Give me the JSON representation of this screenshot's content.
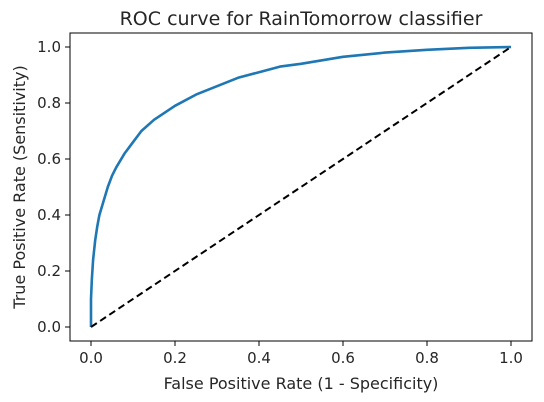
{
  "chart_data": {
    "type": "line",
    "title": "ROC curve for RainTomorrow classifier",
    "xlabel": "False Positive Rate (1 - Specificity)",
    "ylabel": "True Positive Rate (Sensitivity)",
    "xlim": [
      -0.05,
      1.05
    ],
    "ylim": [
      -0.05,
      1.05
    ],
    "xticks": [
      0.0,
      0.2,
      0.4,
      0.6,
      0.8,
      1.0
    ],
    "yticks": [
      0.0,
      0.2,
      0.4,
      0.6,
      0.8,
      1.0
    ],
    "xtick_labels": [
      "0.0",
      "0.2",
      "0.4",
      "0.6",
      "0.8",
      "1.0"
    ],
    "ytick_labels": [
      "0.0",
      "0.2",
      "0.4",
      "0.6",
      "0.8",
      "1.0"
    ],
    "grid": false,
    "series": [
      {
        "style": "solid",
        "color": "#1f77b4",
        "x": [
          0.0,
          0.0,
          0.002,
          0.005,
          0.01,
          0.015,
          0.02,
          0.03,
          0.04,
          0.05,
          0.06,
          0.08,
          0.1,
          0.12,
          0.15,
          0.2,
          0.25,
          0.3,
          0.35,
          0.4,
          0.45,
          0.5,
          0.6,
          0.7,
          0.8,
          0.9,
          1.0
        ],
        "y": [
          0.0,
          0.1,
          0.17,
          0.24,
          0.31,
          0.36,
          0.4,
          0.45,
          0.5,
          0.54,
          0.57,
          0.62,
          0.66,
          0.7,
          0.74,
          0.79,
          0.83,
          0.86,
          0.89,
          0.91,
          0.93,
          0.94,
          0.965,
          0.98,
          0.99,
          0.997,
          1.0
        ]
      },
      {
        "style": "dashed",
        "color": "#000000",
        "x": [
          0.0,
          1.0
        ],
        "y": [
          0.0,
          1.0
        ]
      }
    ]
  }
}
